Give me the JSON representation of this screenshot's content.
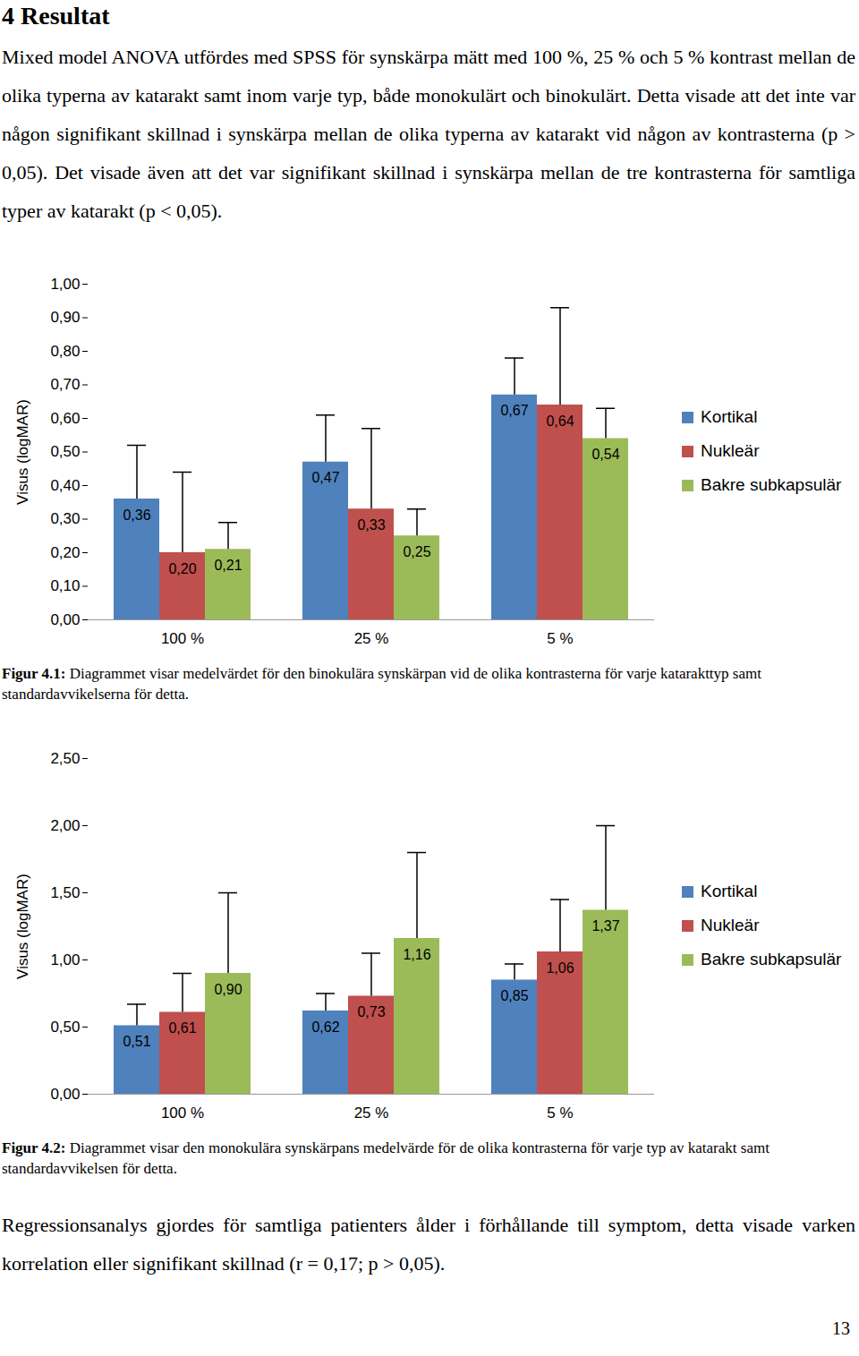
{
  "document": {
    "heading": "4 Resultat",
    "paragraphs": [
      "Mixed model ANOVA utfördes med SPSS för synskärpa mätt med 100 %, 25 % och 5 % kontrast mellan de olika typerna av katarakt samt inom varje typ, både monokulärt och binokulärt. Detta visade att det inte var någon signifikant skillnad i synskärpa mellan de olika typerna av katarakt vid någon av kontrasterna (p > 0,05). Det visade även att det var signifikant skillnad i synskärpa mellan de tre kontrasterna för samtliga typer av katarakt (p < 0,05)."
    ],
    "figures": [
      {
        "caption_label": "Figur 4.1:",
        "caption_text": "Diagrammet visar medelvärdet för den binokulära synskärpan vid de olika kontrasterna för varje katarakttyp samt standardavvikelserna för detta."
      },
      {
        "caption_label": "Figur 4.2:",
        "caption_text": "Diagrammet visar den monokulära synskärpans medelvärde för de olika kontrasterna för varje typ av katarakt samt standardavvikelsen för detta."
      }
    ],
    "closing_paragraph": "Regressionsanalys gjordes för samtliga patienters ålder i förhållande till symptom, detta visade varken korrelation eller signifikant skillnad (r = 0,17; p > 0,05).",
    "page_number": "13"
  },
  "chart_data": [
    {
      "type": "bar",
      "y_label": "Visus (logMAR)",
      "categories": [
        "100 %",
        "25 %",
        "5 %"
      ],
      "series": [
        {
          "name": "Kortikal",
          "color": "#4f81bd",
          "values": [
            0.36,
            0.47,
            0.67
          ],
          "value_labels": [
            "0,36",
            "0,47",
            "0,67"
          ],
          "errors": [
            0.16,
            0.14,
            0.11
          ]
        },
        {
          "name": "Nukleär",
          "color": "#c0504d",
          "values": [
            0.2,
            0.33,
            0.64
          ],
          "value_labels": [
            "0,20",
            "0,33",
            "0,64"
          ],
          "errors": [
            0.24,
            0.24,
            0.29
          ]
        },
        {
          "name": "Bakre subkapsulär",
          "color": "#9bbb59",
          "values": [
            0.21,
            0.25,
            0.54
          ],
          "value_labels": [
            "0,21",
            "0,25",
            "0,54"
          ],
          "errors": [
            0.08,
            0.08,
            0.09
          ]
        }
      ],
      "ylim": [
        0,
        1
      ],
      "yticks": [
        {
          "value": 0,
          "label": "0,00"
        },
        {
          "value": 0.1,
          "label": "0,10"
        },
        {
          "value": 0.2,
          "label": "0,20"
        },
        {
          "value": 0.3,
          "label": "0,30"
        },
        {
          "value": 0.4,
          "label": "0,40"
        },
        {
          "value": 0.5,
          "label": "0,50"
        },
        {
          "value": 0.6,
          "label": "0,60"
        },
        {
          "value": 0.7,
          "label": "0,70"
        },
        {
          "value": 0.8,
          "label": "0,80"
        },
        {
          "value": 0.9,
          "label": "0,90"
        },
        {
          "value": 1,
          "label": "1,00"
        }
      ],
      "grid": false,
      "legend": "right",
      "data_labels": true
    },
    {
      "type": "bar",
      "y_label": "Visus (logMAR)",
      "categories": [
        "100 %",
        "25 %",
        "5 %"
      ],
      "series": [
        {
          "name": "Kortikal",
          "color": "#4f81bd",
          "values": [
            0.51,
            0.62,
            0.85
          ],
          "value_labels": [
            "0,51",
            "0,62",
            "0,85"
          ],
          "errors": [
            0.16,
            0.13,
            0.12
          ]
        },
        {
          "name": "Nukleär",
          "color": "#c0504d",
          "values": [
            0.61,
            0.73,
            1.06
          ],
          "value_labels": [
            "0,61",
            "0,73",
            "1,06"
          ],
          "errors": [
            0.29,
            0.32,
            0.39
          ]
        },
        {
          "name": "Bakre subkapsulär",
          "color": "#9bbb59",
          "values": [
            0.9,
            1.16,
            1.37
          ],
          "value_labels": [
            "0,90",
            "1,16",
            "1,37"
          ],
          "errors": [
            0.6,
            0.64,
            0.63
          ]
        }
      ],
      "ylim": [
        0,
        2.5
      ],
      "yticks": [
        {
          "value": 0,
          "label": "0,00"
        },
        {
          "value": 0.5,
          "label": "0,50"
        },
        {
          "value": 1,
          "label": "1,00"
        },
        {
          "value": 1.5,
          "label": "1,50"
        },
        {
          "value": 2,
          "label": "2,00"
        },
        {
          "value": 2.5,
          "label": "2,50"
        }
      ],
      "grid": false,
      "legend": "right",
      "data_labels": true
    }
  ]
}
